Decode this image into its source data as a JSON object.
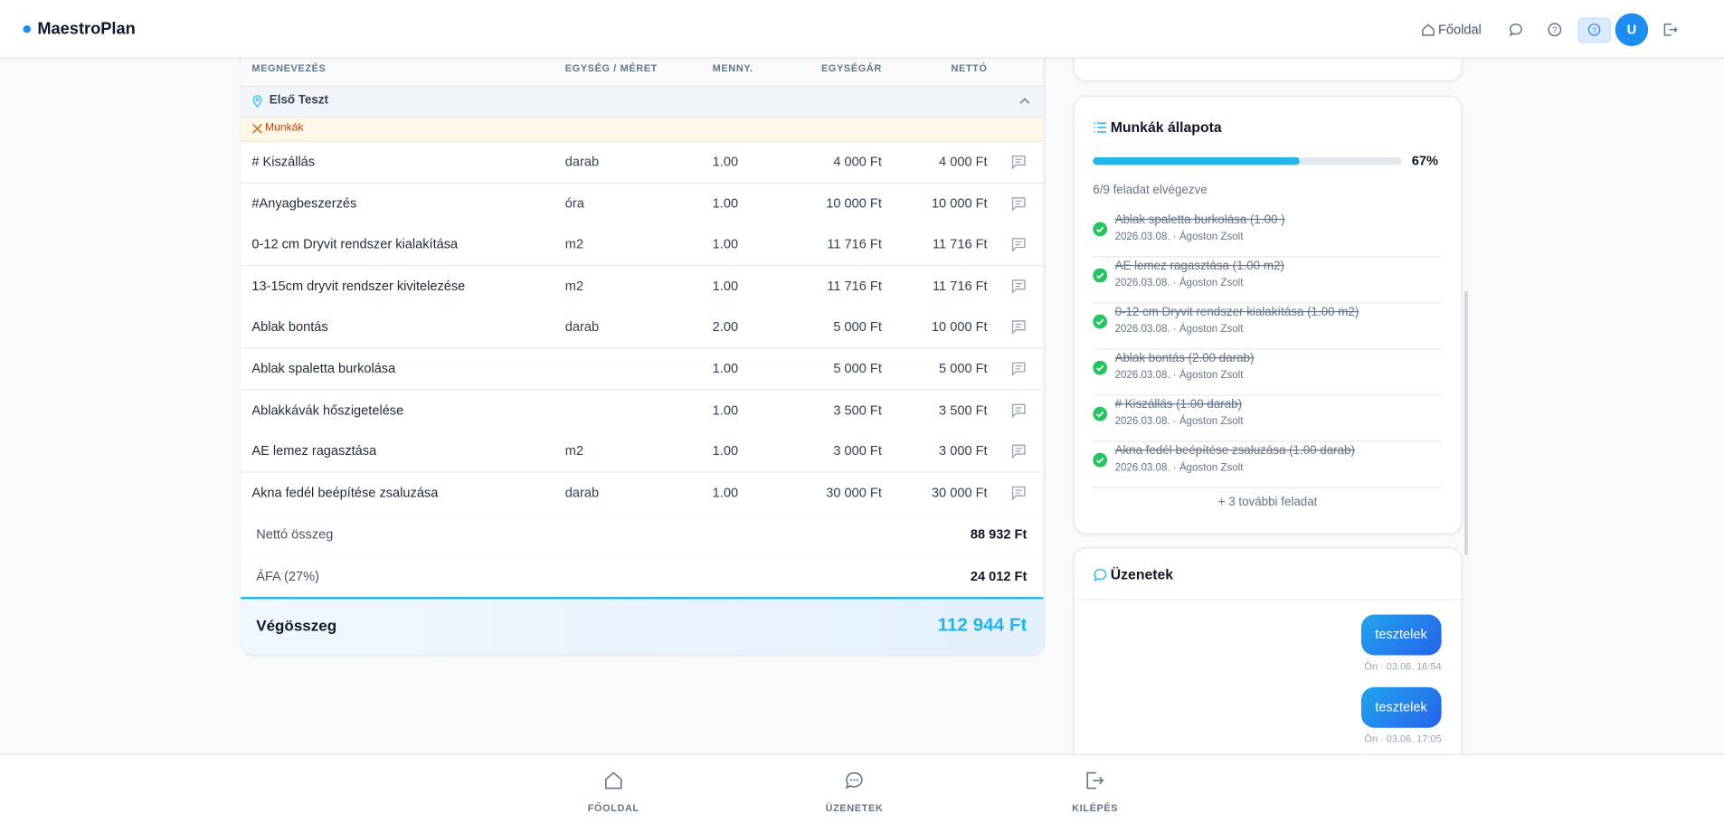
{
  "header": {
    "brand": "MaestroPlan",
    "home": "Főoldal",
    "avatar": "U"
  },
  "table": {
    "columns": [
      "MEGNEVEZÉS",
      "EGYSÉG / MÉRET",
      "MENNY.",
      "EGYSÉGÁR",
      "NETTÓ"
    ],
    "group": "Első Teszt",
    "category": "Munkák",
    "rows": [
      [
        "# Kiszállás",
        "darab",
        "1.00",
        "4 000 Ft",
        "4 000 Ft"
      ],
      [
        "#Anyagbeszerzés",
        "óra",
        "1.00",
        "10 000 Ft",
        "10 000 Ft"
      ],
      [
        "0-12 cm Dryvit rendszer kialakítása",
        "m2",
        "1.00",
        "11 716 Ft",
        "11 716 Ft"
      ],
      [
        "13-15cm dryvit rendszer kivitelezése",
        "m2",
        "1.00",
        "11 716 Ft",
        "11 716 Ft"
      ],
      [
        "Ablak bontás",
        "darab",
        "2.00",
        "5 000 Ft",
        "10 000 Ft"
      ],
      [
        "Ablak spaletta burkolása",
        "",
        "1.00",
        "5 000 Ft",
        "5 000 Ft"
      ],
      [
        "Ablakkávák hőszigetelése",
        "",
        "1.00",
        "3 500 Ft",
        "3 500 Ft"
      ],
      [
        "AE lemez ragasztása",
        "m2",
        "1.00",
        "3 000 Ft",
        "3 000 Ft"
      ],
      [
        "Akna fedél beépítése zsaluzása",
        "darab",
        "1.00",
        "30 000 Ft",
        "30 000 Ft"
      ]
    ],
    "net_label": "Nettó összeg",
    "net_value": "88 932 Ft",
    "vat_label": "ÁFA (27%)",
    "vat_value": "24 012 Ft",
    "total_label": "Végösszeg",
    "total_value": "112 944 Ft"
  },
  "status": {
    "title": "Munkák állapota",
    "progress": {
      "value": 67,
      "label": "67%"
    },
    "summary": "6/9 feladat elvégezve",
    "tasks": [
      {
        "name": "Ablak spaletta burkolása (1.00 )",
        "meta": "2026.03.08. · Ágoston Zsolt"
      },
      {
        "name": "AE lemez ragasztása (1.00 m2)",
        "meta": "2026.03.08. · Ágoston Zsolt"
      },
      {
        "name": "0-12 cm Dryvit rendszer kialakítása (1.00 m2)",
        "meta": "2026.03.08. · Ágoston Zsolt"
      },
      {
        "name": "Ablak bontás (2.00 darab)",
        "meta": "2026.03.08. · Ágoston Zsolt"
      },
      {
        "name": "# Kiszállás (1.00 darab)",
        "meta": "2026.03.08. · Ágoston Zsolt"
      },
      {
        "name": "Akna fedél beépítése zsaluzása (1.00 darab)",
        "meta": "2026.03.08. · Ágoston Zsolt"
      }
    ],
    "more": "+ 3 további feladat"
  },
  "messages": {
    "title": "Üzenetek",
    "items": [
      {
        "text": "tesztelek",
        "meta": "Ön · 03.06. 16:54"
      },
      {
        "text": "tesztelek",
        "meta": "Ön · 03.06. 17:05"
      }
    ]
  },
  "nav": [
    "FŐOLDAL",
    "ÜZENETEK",
    "KILÉPÉS"
  ]
}
